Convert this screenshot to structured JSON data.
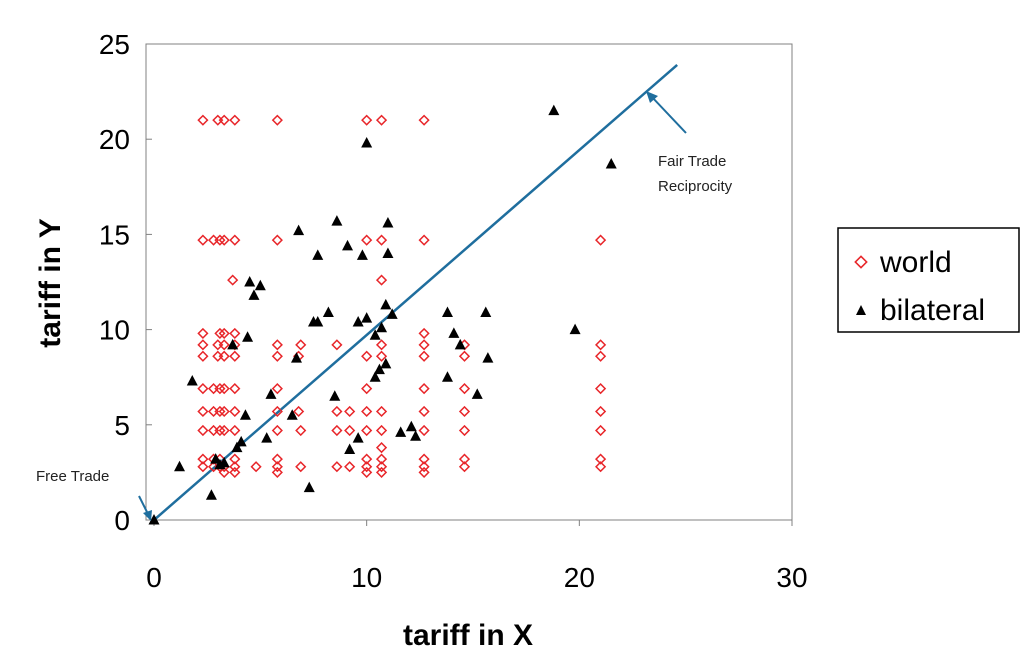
{
  "chart_data": {
    "type": "scatter",
    "title": "",
    "xlabel": "tariff in X",
    "ylabel": "tariff in Y",
    "xlim": [
      0,
      30
    ],
    "ylim": [
      0,
      25
    ],
    "xticks": [
      "0",
      "10",
      "20",
      "30"
    ],
    "yticks": [
      "0",
      "5",
      "10",
      "15",
      "20",
      "25"
    ],
    "grid": false,
    "legend_position": "right",
    "series": [
      {
        "name": "world",
        "marker": "diamond",
        "color": "#e8262a",
        "points": [
          [
            2.3,
            21.0
          ],
          [
            3.0,
            21.0
          ],
          [
            3.3,
            21.0
          ],
          [
            3.8,
            21.0
          ],
          [
            5.8,
            21.0
          ],
          [
            10.0,
            21.0
          ],
          [
            10.7,
            21.0
          ],
          [
            12.7,
            21.0
          ],
          [
            2.3,
            14.7
          ],
          [
            2.8,
            14.7
          ],
          [
            3.1,
            14.7
          ],
          [
            3.3,
            14.7
          ],
          [
            3.8,
            14.7
          ],
          [
            5.8,
            14.7
          ],
          [
            10.0,
            14.7
          ],
          [
            10.7,
            14.7
          ],
          [
            12.7,
            14.7
          ],
          [
            21.0,
            14.7
          ],
          [
            3.7,
            12.6
          ],
          [
            10.7,
            12.6
          ],
          [
            2.3,
            9.8
          ],
          [
            3.1,
            9.8
          ],
          [
            3.3,
            9.8
          ],
          [
            3.8,
            9.8
          ],
          [
            12.7,
            9.8
          ],
          [
            2.3,
            9.2
          ],
          [
            3.0,
            9.2
          ],
          [
            3.3,
            9.2
          ],
          [
            3.8,
            9.2
          ],
          [
            5.8,
            9.2
          ],
          [
            6.9,
            9.2
          ],
          [
            8.6,
            9.2
          ],
          [
            10.7,
            9.2
          ],
          [
            12.7,
            9.2
          ],
          [
            14.6,
            9.2
          ],
          [
            21.0,
            9.2
          ],
          [
            2.3,
            8.6
          ],
          [
            3.0,
            8.6
          ],
          [
            3.3,
            8.6
          ],
          [
            3.8,
            8.6
          ],
          [
            5.8,
            8.6
          ],
          [
            6.8,
            8.6
          ],
          [
            10.0,
            8.6
          ],
          [
            10.7,
            8.6
          ],
          [
            12.7,
            8.6
          ],
          [
            14.6,
            8.6
          ],
          [
            21.0,
            8.6
          ],
          [
            2.3,
            6.9
          ],
          [
            2.8,
            6.9
          ],
          [
            3.1,
            6.9
          ],
          [
            3.3,
            6.9
          ],
          [
            3.8,
            6.9
          ],
          [
            5.8,
            6.9
          ],
          [
            10.0,
            6.9
          ],
          [
            12.7,
            6.9
          ],
          [
            14.6,
            6.9
          ],
          [
            21.0,
            6.9
          ],
          [
            2.3,
            5.7
          ],
          [
            2.8,
            5.7
          ],
          [
            3.1,
            5.7
          ],
          [
            3.3,
            5.7
          ],
          [
            3.8,
            5.7
          ],
          [
            5.8,
            5.7
          ],
          [
            6.8,
            5.7
          ],
          [
            8.6,
            5.7
          ],
          [
            9.2,
            5.7
          ],
          [
            10.0,
            5.7
          ],
          [
            10.7,
            5.7
          ],
          [
            12.7,
            5.7
          ],
          [
            14.6,
            5.7
          ],
          [
            21.0,
            5.7
          ],
          [
            2.3,
            4.7
          ],
          [
            2.8,
            4.7
          ],
          [
            3.1,
            4.7
          ],
          [
            3.3,
            4.7
          ],
          [
            3.8,
            4.7
          ],
          [
            5.8,
            4.7
          ],
          [
            6.9,
            4.7
          ],
          [
            8.6,
            4.7
          ],
          [
            9.2,
            4.7
          ],
          [
            10.0,
            4.7
          ],
          [
            10.7,
            4.7
          ],
          [
            12.7,
            4.7
          ],
          [
            14.6,
            4.7
          ],
          [
            21.0,
            4.7
          ],
          [
            10.7,
            3.8
          ],
          [
            2.3,
            3.2
          ],
          [
            2.8,
            3.2
          ],
          [
            3.1,
            3.2
          ],
          [
            3.8,
            3.2
          ],
          [
            5.8,
            3.2
          ],
          [
            10.0,
            3.2
          ],
          [
            10.7,
            3.2
          ],
          [
            12.7,
            3.2
          ],
          [
            14.6,
            3.2
          ],
          [
            21.0,
            3.2
          ],
          [
            2.3,
            2.8
          ],
          [
            2.8,
            2.8
          ],
          [
            3.1,
            2.8
          ],
          [
            3.3,
            2.8
          ],
          [
            3.8,
            2.8
          ],
          [
            4.8,
            2.8
          ],
          [
            5.8,
            2.8
          ],
          [
            6.9,
            2.8
          ],
          [
            8.6,
            2.8
          ],
          [
            9.2,
            2.8
          ],
          [
            10.0,
            2.8
          ],
          [
            10.7,
            2.8
          ],
          [
            12.7,
            2.8
          ],
          [
            14.6,
            2.8
          ],
          [
            21.0,
            2.8
          ],
          [
            3.3,
            2.5
          ],
          [
            3.8,
            2.5
          ],
          [
            5.8,
            2.5
          ],
          [
            10.0,
            2.5
          ],
          [
            10.7,
            2.5
          ],
          [
            12.7,
            2.5
          ]
        ]
      },
      {
        "name": "bilateral",
        "marker": "triangle",
        "color": "#000000",
        "points": [
          [
            0,
            0
          ],
          [
            1.2,
            2.8
          ],
          [
            1.8,
            7.3
          ],
          [
            2.7,
            1.3
          ],
          [
            2.9,
            3.2
          ],
          [
            3.1,
            2.9
          ],
          [
            3.3,
            3.0
          ],
          [
            3.7,
            9.2
          ],
          [
            3.9,
            3.8
          ],
          [
            4.1,
            4.1
          ],
          [
            4.3,
            5.5
          ],
          [
            4.4,
            9.6
          ],
          [
            4.5,
            12.5
          ],
          [
            4.7,
            11.8
          ],
          [
            5.0,
            12.3
          ],
          [
            5.3,
            4.3
          ],
          [
            5.5,
            6.6
          ],
          [
            6.5,
            5.5
          ],
          [
            6.7,
            8.5
          ],
          [
            6.8,
            15.2
          ],
          [
            7.3,
            1.7
          ],
          [
            7.5,
            10.4
          ],
          [
            7.7,
            10.4
          ],
          [
            7.7,
            13.9
          ],
          [
            8.2,
            10.9
          ],
          [
            8.5,
            6.5
          ],
          [
            8.6,
            15.7
          ],
          [
            9.1,
            14.4
          ],
          [
            9.2,
            3.7
          ],
          [
            9.6,
            4.3
          ],
          [
            9.6,
            10.4
          ],
          [
            9.8,
            13.9
          ],
          [
            10.0,
            10.6
          ],
          [
            10.0,
            19.8
          ],
          [
            10.4,
            7.5
          ],
          [
            10.4,
            9.7
          ],
          [
            10.6,
            7.9
          ],
          [
            10.7,
            10.1
          ],
          [
            10.9,
            11.3
          ],
          [
            10.9,
            8.2
          ],
          [
            11.0,
            15.6
          ],
          [
            11.0,
            14.0
          ],
          [
            11.2,
            10.8
          ],
          [
            11.6,
            4.6
          ],
          [
            12.1,
            4.9
          ],
          [
            12.3,
            4.4
          ],
          [
            13.8,
            10.9
          ],
          [
            13.8,
            7.5
          ],
          [
            14.1,
            9.8
          ],
          [
            14.4,
            9.2
          ],
          [
            15.2,
            6.6
          ],
          [
            15.6,
            10.9
          ],
          [
            15.7,
            8.5
          ],
          [
            18.8,
            21.5
          ],
          [
            19.8,
            10.0
          ],
          [
            21.5,
            18.7
          ]
        ]
      }
    ],
    "lines": [
      {
        "name": "Fair Trade Reciprocity",
        "from": [
          0,
          0
        ],
        "to": [
          24.6,
          23.9
        ],
        "color": "#1f6e9e"
      }
    ],
    "annotations": [
      {
        "text_lines": [
          "Fair Trade",
          "Reciprocity"
        ]
      },
      {
        "text_lines": [
          "Free Trade"
        ]
      }
    ]
  },
  "legend": {
    "items": [
      {
        "label": "world",
        "marker": "diamond",
        "color": "#e8262a"
      },
      {
        "label": "bilateral",
        "marker": "triangle",
        "color": "#000000"
      }
    ]
  }
}
